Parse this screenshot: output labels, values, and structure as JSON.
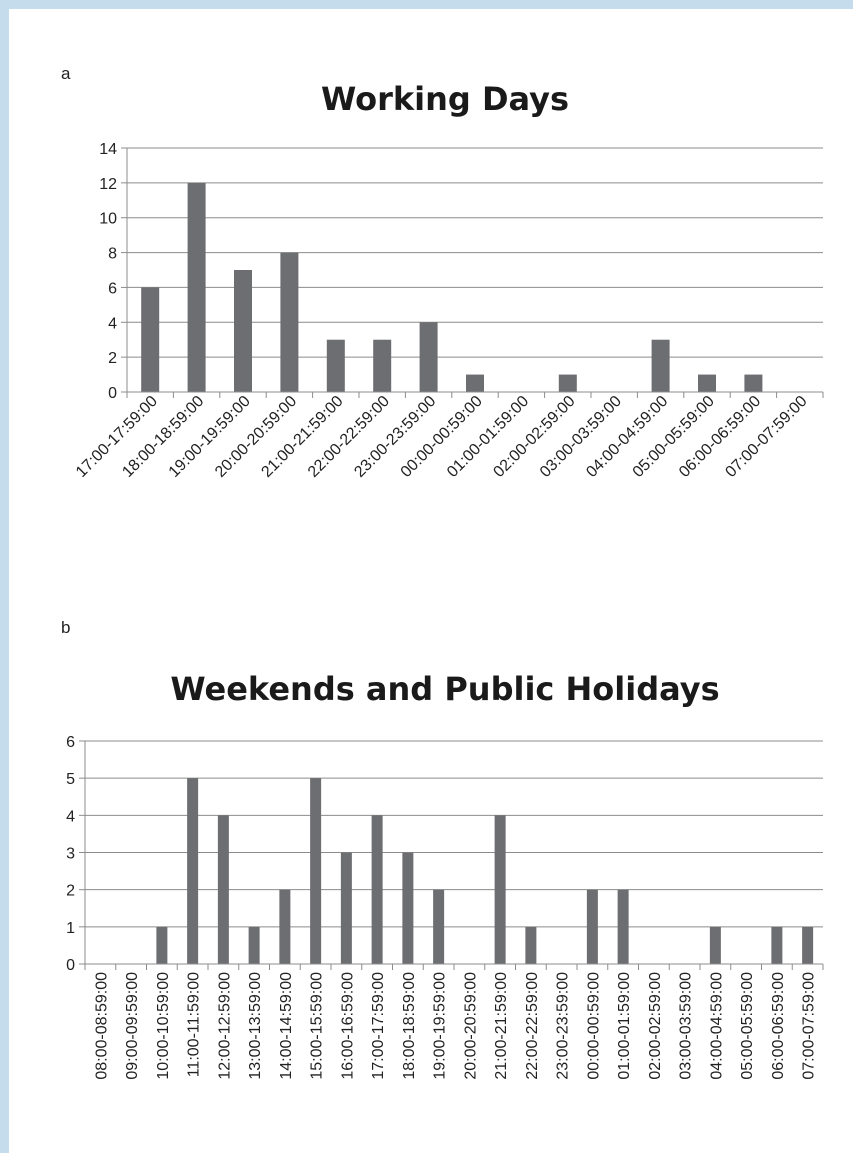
{
  "colors": {
    "bar": "#6d6e71",
    "frame": "#c5dcec",
    "grid": "#8c8c8c"
  },
  "chart_data": [
    {
      "type": "bar",
      "panel_label": "a",
      "title": "Working Days",
      "xlabel": "",
      "ylabel": "",
      "ylim": [
        0,
        14
      ],
      "yticks": [
        "0",
        "2",
        "4",
        "6",
        "8",
        "10",
        "12",
        "14"
      ],
      "grid": true,
      "categories": [
        "17:00-17:59:00",
        "18:00-18:59:00",
        "19:00-19:59:00",
        "20:00-20:59:00",
        "21:00-21:59:00",
        "22:00-22:59:00",
        "23:00-23:59:00",
        "00:00-00:59:00",
        "01:00-01:59:00",
        "02:00-02:59:00",
        "03:00-03:59:00",
        "04:00-04:59:00",
        "05:00-05:59:00",
        "06:00-06:59:00",
        "07:00-07:59:00"
      ],
      "values": [
        6,
        12,
        7,
        8,
        3,
        3,
        4,
        1,
        0,
        1,
        0,
        3,
        1,
        1,
        0
      ]
    },
    {
      "type": "bar",
      "panel_label": "b",
      "title": "Weekends and Public Holidays",
      "xlabel": "",
      "ylabel": "",
      "ylim": [
        0,
        6
      ],
      "yticks": [
        "0",
        "1",
        "2",
        "3",
        "4",
        "5",
        "6"
      ],
      "grid": true,
      "categories": [
        "08:00-08:59:00",
        "09:00-09:59:00",
        "10:00-10:59:00",
        "11:00-11:59:00",
        "12:00-12:59:00",
        "13:00-13:59:00",
        "14:00-14:59:00",
        "15:00-15:59:00",
        "16:00-16:59:00",
        "17:00-17:59:00",
        "18:00-18:59:00",
        "19:00-19:59:00",
        "20:00-20:59:00",
        "21:00-21:59:00",
        "22:00-22:59:00",
        "23:00-23:59:00",
        "00:00-00:59:00",
        "01:00-01:59:00",
        "02:00-02:59:00",
        "03:00-03:59:00",
        "04:00-04:59:00",
        "05:00-05:59:00",
        "06:00-06:59:00",
        "07:00-07:59:00"
      ],
      "values": [
        0,
        0,
        1,
        5,
        4,
        1,
        2,
        5,
        3,
        4,
        3,
        2,
        0,
        4,
        1,
        0,
        2,
        2,
        0,
        0,
        1,
        0,
        1,
        1
      ]
    }
  ]
}
